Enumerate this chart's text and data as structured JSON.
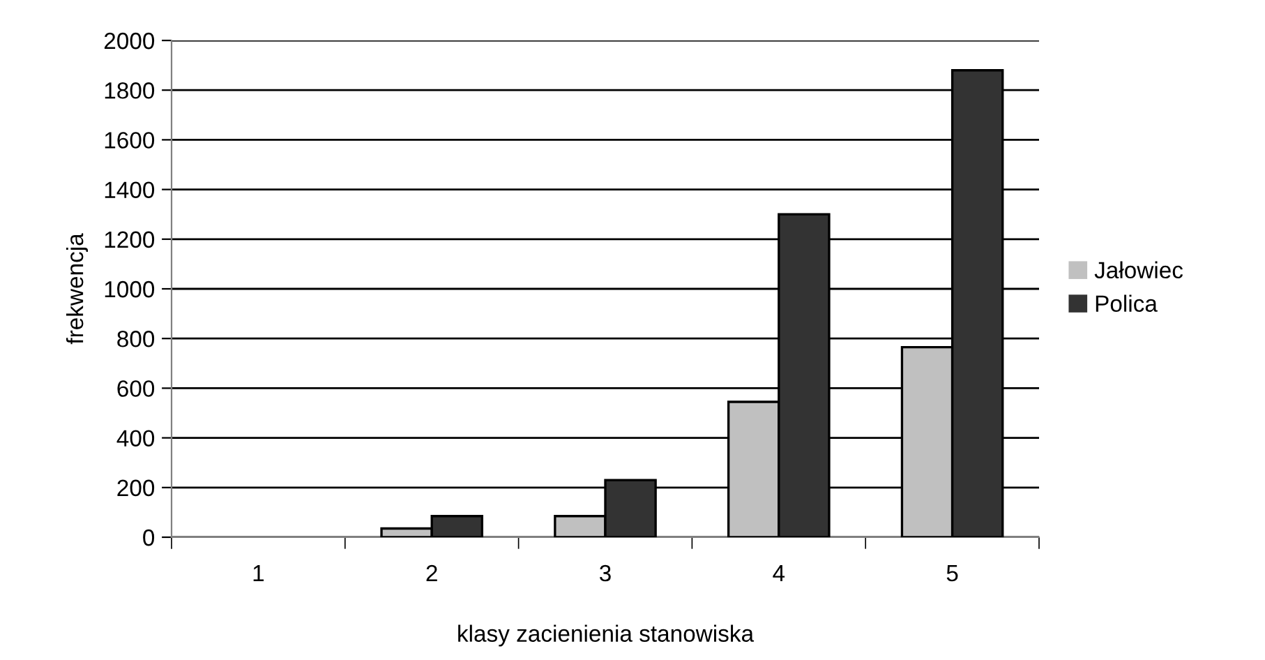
{
  "chart_data": {
    "type": "bar",
    "xlabel": "klasy zacienienia stanowiska",
    "ylabel": "frekwencja",
    "categories": [
      "1",
      "2",
      "3",
      "4",
      "5"
    ],
    "series": [
      {
        "name": "Jałowiec",
        "color": "#c0c0c0",
        "values": [
          0,
          35,
          85,
          545,
          765
        ]
      },
      {
        "name": "Polica",
        "color": "#333333",
        "values": [
          0,
          85,
          230,
          1300,
          1880
        ]
      }
    ],
    "ylim": [
      0,
      2000
    ],
    "yticks": [
      0,
      200,
      400,
      600,
      800,
      1000,
      1200,
      1400,
      1600,
      1800,
      2000
    ],
    "grid": "y",
    "legend": "right"
  }
}
